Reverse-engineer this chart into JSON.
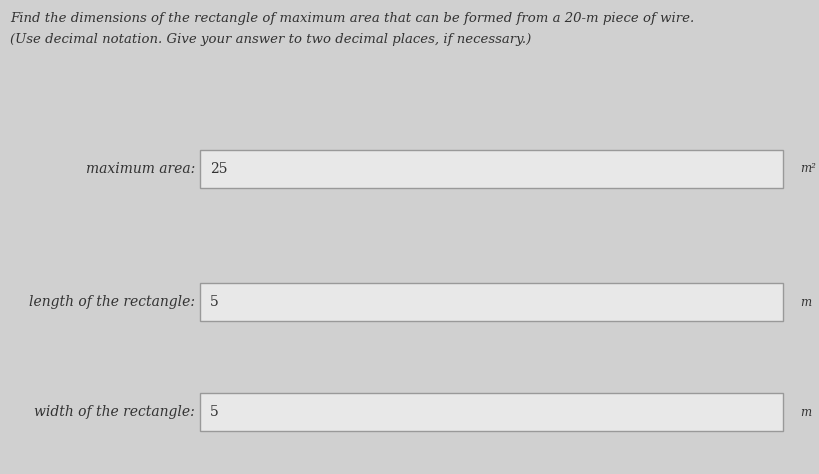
{
  "title_line1": "Find the dimensions of the rectangle of maximum area that can be formed from a 20-m piece of wire.",
  "title_line2": "(Use decimal notation. Give your answer to two decimal places, if necessary.)",
  "background_color": "#d0d0d0",
  "box_color": "#e8e8e8",
  "box_border_color": "#999999",
  "text_color": "#333333",
  "fields": [
    {
      "label": "maximum area:",
      "value": "25",
      "unit": "m²"
    },
    {
      "label": "length of the rectangle:",
      "value": "5",
      "unit": "m"
    },
    {
      "label": "width of the rectangle:",
      "value": "5",
      "unit": "m"
    }
  ],
  "title_fontsize": 9.5,
  "label_fontsize": 10,
  "value_fontsize": 10,
  "unit_fontsize": 8.5,
  "fig_width": 8.19,
  "fig_height": 4.74,
  "dpi": 100
}
